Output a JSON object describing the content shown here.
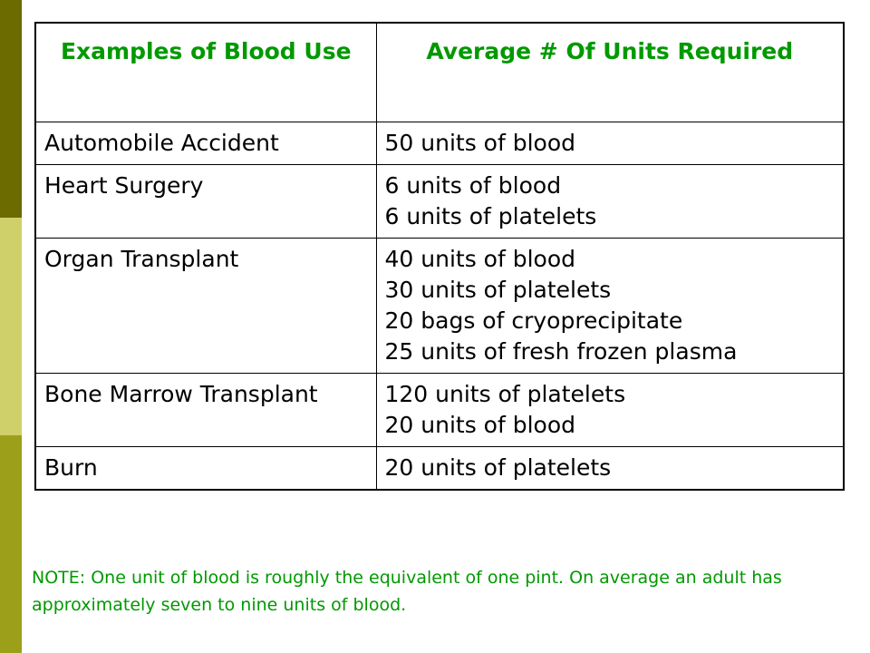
{
  "colors": {
    "accent_green": "#009900",
    "side_bar_dark": "#6b6b00",
    "side_bar_light": "#cfd06a",
    "side_bar_mid": "#9c9f1a"
  },
  "table": {
    "headers": [
      "Examples of Blood Use",
      "Average # Of Units Required"
    ],
    "rows": [
      {
        "use": "Automobile Accident",
        "units": [
          "50 units of blood"
        ]
      },
      {
        "use": "Heart Surgery",
        "units": [
          "6 units of blood",
          "6 units of platelets"
        ]
      },
      {
        "use": "Organ Transplant",
        "units": [
          "40 units of blood",
          "30 units of platelets",
          "20 bags of cryoprecipitate",
          "25 units of fresh frozen plasma"
        ]
      },
      {
        "use": "Bone Marrow Transplant",
        "units": [
          "120 units of platelets",
          "20 units of blood"
        ]
      },
      {
        "use": "Burn",
        "units": [
          "20 units of platelets"
        ]
      }
    ]
  },
  "note": "NOTE: One unit of blood is roughly the equivalent of one pint. On average an adult has approximately seven to nine units of blood."
}
